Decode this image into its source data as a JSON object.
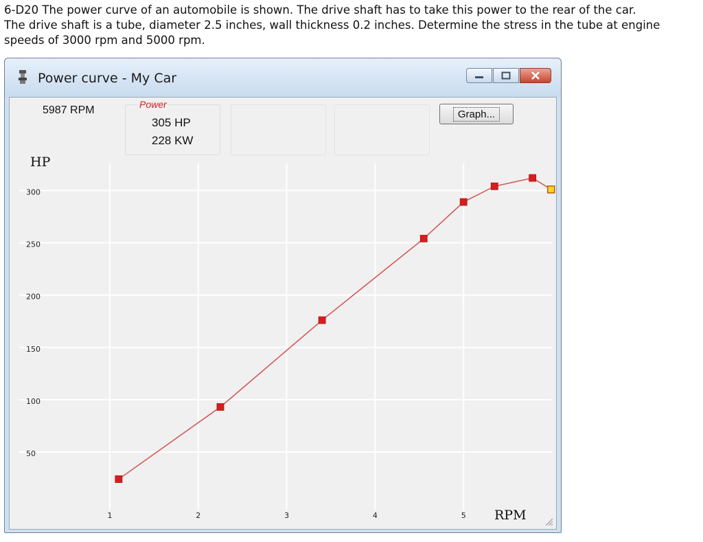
{
  "problem": {
    "lines": [
      "6-D20  The power curve of an automobile is shown.  The drive shaft has to take this power to the rear of the car.",
      "The drive shaft is a tube, diameter 2.5 inches, wall thickness 0.2 inches.  Determine the stress in the tube at engine",
      "speeds of 3000 rpm and 5000 rpm."
    ]
  },
  "window": {
    "title": "Power curve - My Car",
    "app_icon": "engine-icon",
    "controls": [
      "minimize-icon",
      "maximize-icon",
      "close-icon"
    ]
  },
  "readout": {
    "rpm": "5987 RPM",
    "power_label": "Power",
    "hp": "305 HP",
    "kw": "228 KW"
  },
  "graph_button": "Graph...",
  "colors": {
    "curve": "#d45a5a",
    "marker": "#d91c1c",
    "highlight_marker": "#f7d61e",
    "power_label": "#d42020"
  },
  "chart_data": {
    "type": "line",
    "title": "",
    "xlabel": "RPM",
    "ylabel": "HP",
    "x_unit": "thousand rpm",
    "xlim": [
      0.85,
      6.0
    ],
    "ylim": [
      20,
      330
    ],
    "x_ticks": [
      "1",
      "2",
      "3",
      "4",
      "5"
    ],
    "y_ticks": [
      "300",
      "250",
      "200",
      "150",
      "100",
      "50"
    ],
    "grid": true,
    "series": [
      {
        "x": [
          1.1,
          2.25,
          3.4,
          4.55,
          5.0,
          5.35,
          5.78,
          5.99
        ],
        "y": [
          28,
          97,
          180,
          258,
          293,
          308,
          316,
          305
        ]
      }
    ],
    "highlighted_point": {
      "x": 5.99,
      "y": 305
    }
  }
}
